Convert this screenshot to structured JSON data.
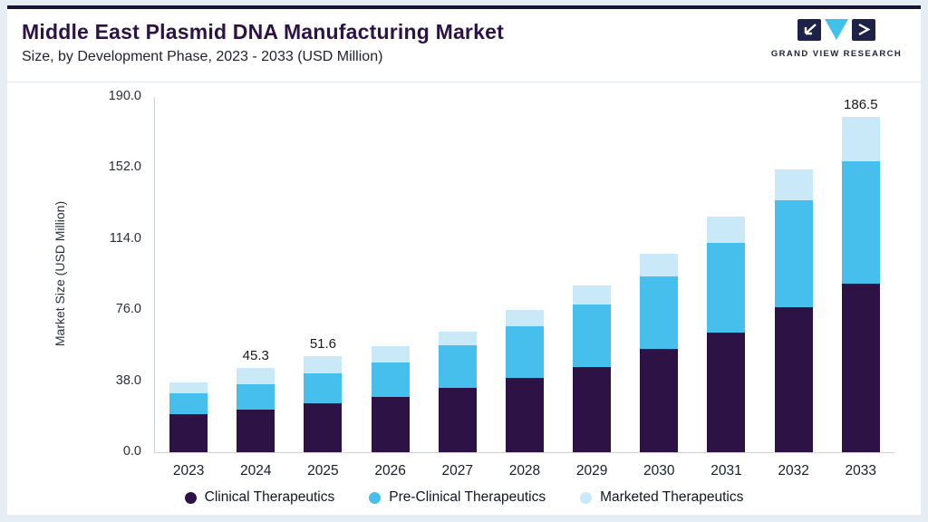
{
  "header": {
    "title": "Middle East Plasmid DNA Manufacturing Market",
    "subtitle": "Size, by Development Phase, 2023 - 2033 (USD Million)"
  },
  "logo": {
    "text": "GRAND VIEW RESEARCH",
    "dark_color": "#1e2148",
    "accent_color": "#3ec2ea"
  },
  "chart_data": {
    "type": "bar",
    "stacked": true,
    "title": "Middle East Plasmid DNA Manufacturing Market Size, by Development Phase, 2023 - 2033 (USD Million)",
    "ylabel": "Market Size (USD Million)",
    "xlabel": "",
    "ylim": [
      0,
      190
    ],
    "yticks": [
      0.0,
      38.0,
      76.0,
      114.0,
      152.0,
      190.0
    ],
    "grid": false,
    "legend_position": "bottom",
    "categories": [
      "2023",
      "2024",
      "2025",
      "2026",
      "2027",
      "2028",
      "2029",
      "2030",
      "2031",
      "2032",
      "2033"
    ],
    "series": [
      {
        "name": "Clinical Therapeutics",
        "color": "#2d1245",
        "values": [
          20.4,
          22.8,
          26.2,
          29.6,
          34.4,
          39.8,
          45.6,
          55.3,
          64.0,
          77.6,
          93.6
        ]
      },
      {
        "name": "Pre-Clinical Therapeutics",
        "color": "#47bfec",
        "values": [
          11.1,
          13.6,
          16.0,
          18.4,
          22.8,
          27.6,
          33.4,
          38.7,
          48.0,
          57.2,
          68.4
        ]
      },
      {
        "name": "Marketed Therapeutics",
        "color": "#c9e9f8",
        "values": [
          6.0,
          8.9,
          9.4,
          8.8,
          7.3,
          8.6,
          10.0,
          12.0,
          14.0,
          16.2,
          24.5
        ]
      }
    ],
    "totals": [
      37.5,
      45.3,
      51.6,
      56.8,
      64.5,
      76.0,
      89.0,
      106.0,
      126.0,
      151.0,
      186.5
    ],
    "bar_labels": {
      "2024": "45.3",
      "2025": "51.6",
      "2033": "186.5"
    }
  }
}
